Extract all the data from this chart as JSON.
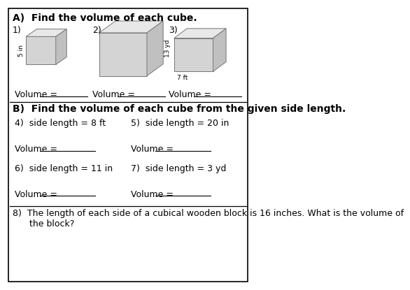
{
  "title_a": "A)  Find the volume of each cube.",
  "title_b": "B)  Find the volume of each cube from the given side length.",
  "bg_color": "#ffffff",
  "cube_face_light": "#e8e8e8",
  "cube_face_mid": "#d4d4d4",
  "cube_face_dark": "#c0c0c0",
  "cube_edge_color": "#888888",
  "label_1": "1)",
  "label_2": "2)",
  "label_3": "3)",
  "label_4": "4)  side length = 8 ft",
  "label_5": "5)  side length = 20 in",
  "label_6": "6)  side length = 11 in",
  "label_7": "7)  side length = 3 yd",
  "label_8": "8)  The length of each side of a cubical wooden block is 16 inches. What is the volume of\n      the block?",
  "dim1": "5 in",
  "dim2": "13 yd",
  "dim3": "7 ft",
  "volume_label": "Volume = ",
  "line_color": "#000000",
  "text_color": "#000000",
  "font_size_title": 10,
  "font_size_label": 9,
  "font_size_dim": 6.5
}
